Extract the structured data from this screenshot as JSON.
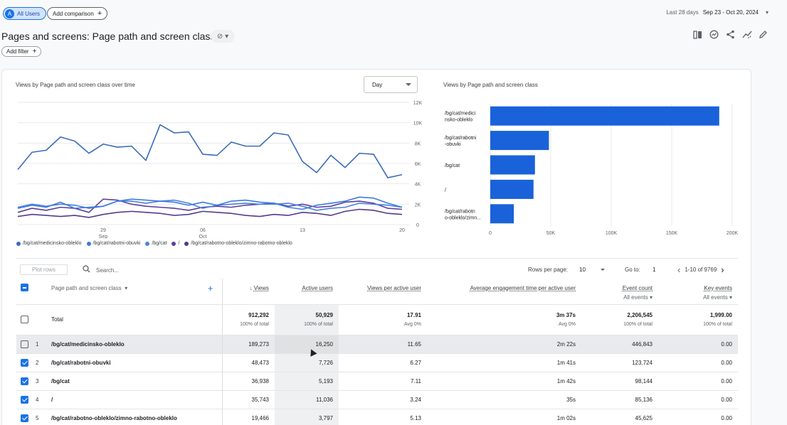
{
  "header": {
    "segment_chip": {
      "avatar": "A",
      "label": "All Users"
    },
    "add_comparison": "Add comparison",
    "date_prefix": "Last 28 days",
    "date_range": "Sep 23 - Oct 20, 2024"
  },
  "title": {
    "text": "Pages and screens: Page path and screen class",
    "icons": [
      "compare-icon",
      "insights-icon",
      "share-icon",
      "trend-icon",
      "edit-icon"
    ]
  },
  "add_filter": "Add filter",
  "line_chart_card": {
    "title": "Views by Page path and screen class over time",
    "granularity": "Day"
  },
  "bar_chart_card": {
    "title": "Views by Page path and screen class"
  },
  "legend": [
    {
      "label": "/bg/cat/medicinsko-obleklo",
      "color": "#3c6cba"
    },
    {
      "label": "/bg/cat/rabotni-obuvki",
      "color": "#3d7be0"
    },
    {
      "label": "/bg/cat",
      "color": "#4c82d9"
    },
    {
      "label": "/",
      "color": "#5a3f9e"
    },
    {
      "label": "/bg/cat/rabotno-obleklo/zimno-rabotno-obleklo",
      "color": "#553a8a"
    }
  ],
  "chart_data": [
    {
      "type": "line",
      "title": "Views by Page path and screen class over time",
      "x": [
        "Sep 23",
        "Sep 24",
        "Sep 25",
        "Sep 26",
        "Sep 27",
        "Sep 28",
        "Sep 29",
        "Sep 30",
        "Oct 1",
        "Oct 2",
        "Oct 3",
        "Oct 4",
        "Oct 5",
        "Oct 6",
        "Oct 7",
        "Oct 8",
        "Oct 9",
        "Oct 10",
        "Oct 11",
        "Oct 12",
        "Oct 13",
        "Oct 14",
        "Oct 15",
        "Oct 16",
        "Oct 17",
        "Oct 18",
        "Oct 19",
        "Oct 20"
      ],
      "x_tick_labels": [
        {
          "at": "Sep 29",
          "label": "29",
          "sub": "Sep"
        },
        {
          "at": "Oct 6",
          "label": "06",
          "sub": "Oct"
        },
        {
          "at": "Oct 13",
          "label": "13",
          "sub": ""
        },
        {
          "at": "Oct 20",
          "label": "20",
          "sub": ""
        }
      ],
      "ylim": [
        0,
        12000
      ],
      "y_ticks": [
        "0",
        "2K",
        "4K",
        "6K",
        "8K",
        "10K",
        "12K"
      ],
      "grid": true,
      "series": [
        {
          "name": "/bg/cat/medicinsko-obleklo",
          "color": "#3c6cba",
          "values": [
            5400,
            7100,
            7300,
            8600,
            8200,
            7000,
            7900,
            7600,
            7700,
            6300,
            9800,
            9000,
            9100,
            6900,
            6800,
            8100,
            7700,
            7700,
            9000,
            8800,
            6200,
            5100,
            6800,
            5600,
            7000,
            6900,
            4600,
            4900
          ]
        },
        {
          "name": "/bg/cat/rabotni-obuvki",
          "color": "#3d7be0",
          "values": [
            1600,
            1900,
            1700,
            2200,
            1600,
            1700,
            1800,
            2300,
            2500,
            2400,
            2300,
            2200,
            1900,
            2200,
            1900,
            2300,
            2400,
            2200,
            2100,
            1700,
            1500,
            1900,
            2100,
            2300,
            2700,
            2600,
            2100,
            1700
          ]
        },
        {
          "name": "/bg/cat",
          "color": "#4c82d9",
          "values": [
            1700,
            2000,
            1800,
            2000,
            1900,
            1600,
            1800,
            2300,
            2300,
            2100,
            2300,
            2400,
            2100,
            1600,
            1900,
            2000,
            2100,
            2000,
            2000,
            2100,
            1800,
            1400,
            1600,
            1700,
            2100,
            2000,
            1900,
            1700
          ]
        },
        {
          "name": "/",
          "color": "#5a3f9e",
          "values": [
            1200,
            1600,
            1400,
            1700,
            1600,
            1200,
            2500,
            2400,
            2000,
            1800,
            1700,
            1600,
            1400,
            1700,
            1800,
            1700,
            1900,
            2000,
            2100,
            1800,
            2000,
            1700,
            1800,
            2200,
            2300,
            2100,
            1600,
            1500
          ]
        },
        {
          "name": "/bg/cat/rabotno-obleklo/zimno-rabotno-obleklo",
          "color": "#553a8a",
          "values": [
            800,
            1000,
            900,
            800,
            900,
            700,
            1000,
            1200,
            1300,
            1200,
            1100,
            900,
            1000,
            1300,
            1200,
            1100,
            900,
            800,
            1000,
            900,
            1200,
            1100,
            900,
            1300,
            1500,
            1400,
            1100,
            1000
          ]
        }
      ]
    },
    {
      "type": "bar",
      "orientation": "horizontal",
      "title": "Views by Page path and screen class",
      "categories": [
        "/bg/cat/medicinsko-obleklo",
        "/bg/cat/rabotni-obuvki",
        "/bg/cat",
        "/",
        "/bg/cat/rabotno-obleklo/zimno-rabotno-obleklo"
      ],
      "category_labels": [
        [
          "/bg/cat/medici",
          "nsko-obleklo"
        ],
        [
          "/bg/cat/rabotni",
          "-obuvki"
        ],
        [
          "/bg/cat"
        ],
        [
          "/"
        ],
        [
          "/bg/cat/rabotn",
          "o-obleklo/zimn..."
        ]
      ],
      "values": [
        189273,
        48473,
        36938,
        35743,
        19466
      ],
      "xlim": [
        0,
        200000
      ],
      "x_ticks": [
        "0",
        "50K",
        "100K",
        "150K",
        "200K"
      ],
      "color": "#1a62d9",
      "grid": true
    }
  ],
  "table_tools": {
    "plot_rows": "Plot rows",
    "search_placeholder": "Search...",
    "rows_per_page_label": "Rows per page:",
    "rows_per_page": "10",
    "goto_label": "Go to:",
    "goto_value": "1",
    "range": "1-10 of 9769"
  },
  "table": {
    "columns": {
      "dimension": "Page path and screen class",
      "views": "Views",
      "active_users": "Active users",
      "views_per_user": "Views per active user",
      "avg_engagement": "Average engagement time per active user",
      "event_count": "Event count",
      "event_count_sub": "All events",
      "key_events": "Key events",
      "key_events_sub": "All events"
    },
    "total": {
      "label": "Total",
      "views": "912,292",
      "views_sub": "100% of total",
      "active_users": "50,929",
      "active_users_sub": "100% of total",
      "views_per_user": "17.91",
      "views_per_user_sub": "Avg 0%",
      "avg_engagement": "3m 37s",
      "avg_engagement_sub": "Avg 0%",
      "event_count": "2,206,545",
      "event_count_sub": "100% of total",
      "key_events": "1,999.00",
      "key_events_sub": "100% of total"
    },
    "rows": [
      {
        "n": "1",
        "path": "/bg/cat/medicinsko-obleklo",
        "views": "189,273",
        "active_users": "16,250",
        "vpu": "11.65",
        "eng": "2m 22s",
        "events": "446,843",
        "key": "0.00"
      },
      {
        "n": "2",
        "path": "/bg/cat/rabotni-obuvki",
        "views": "48,473",
        "active_users": "7,726",
        "vpu": "6.27",
        "eng": "1m 41s",
        "events": "123,724",
        "key": "0.00"
      },
      {
        "n": "3",
        "path": "/bg/cat",
        "views": "36,938",
        "active_users": "5,193",
        "vpu": "7.11",
        "eng": "1m 42s",
        "events": "98,144",
        "key": "0.00"
      },
      {
        "n": "4",
        "path": "/",
        "views": "35,743",
        "active_users": "11,036",
        "vpu": "3.24",
        "eng": "35s",
        "events": "85,136",
        "key": "0.00"
      },
      {
        "n": "5",
        "path": "/bg/cat/rabotno-obleklo/zimno-rabotno-obleklo",
        "views": "19,466",
        "active_users": "3,797",
        "vpu": "5.13",
        "eng": "1m 02s",
        "events": "45,625",
        "key": "0.00"
      }
    ],
    "row_checked": [
      false,
      true,
      true,
      true,
      true
    ]
  }
}
